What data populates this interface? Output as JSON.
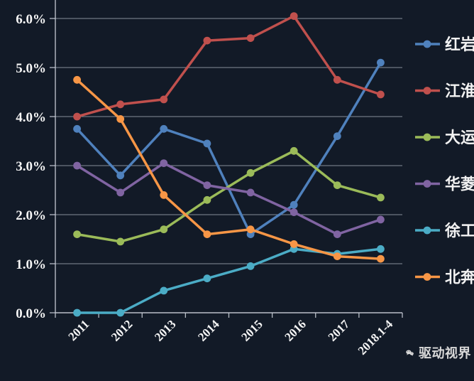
{
  "watermark": {
    "text": "驱动视界",
    "icon": "wechat-icon"
  },
  "colors": {
    "background": "#121a27",
    "grid": "#aeb4bf",
    "axis": "#c9ced7",
    "label": "#f5f5f5"
  },
  "chart_data": {
    "type": "line",
    "title": "",
    "xlabel": "",
    "ylabel": "",
    "categories": [
      "2011",
      "2012",
      "2013",
      "2014",
      "2015",
      "2016",
      "2017",
      "2018.1-4"
    ],
    "series": [
      {
        "name": "红岩",
        "color": "#4f81bd",
        "values": [
          3.75,
          2.8,
          3.75,
          3.45,
          1.6,
          2.2,
          3.6,
          5.1
        ]
      },
      {
        "name": "江淮",
        "color": "#c0504d",
        "values": [
          4.0,
          4.25,
          4.35,
          5.55,
          5.6,
          6.05,
          4.75,
          4.45
        ]
      },
      {
        "name": "大运",
        "color": "#9bbb59",
        "values": [
          1.6,
          1.45,
          1.7,
          2.3,
          2.85,
          3.3,
          2.6,
          2.35
        ]
      },
      {
        "name": "华菱",
        "color": "#8064a2",
        "values": [
          3.0,
          2.45,
          3.05,
          2.6,
          2.45,
          2.05,
          1.6,
          1.9
        ]
      },
      {
        "name": "徐工",
        "color": "#4bacc6",
        "values": [
          0.0,
          0.0,
          0.45,
          0.7,
          0.95,
          1.3,
          1.2,
          1.3
        ]
      },
      {
        "name": "北奔",
        "color": "#f79646",
        "values": [
          4.75,
          3.95,
          2.4,
          1.6,
          1.7,
          1.4,
          1.15,
          1.1
        ]
      }
    ],
    "ylim": [
      0,
      6
    ],
    "y_tick_step": 1,
    "y_tick_labels": [
      "0.0%",
      "1.0%",
      "2.0%",
      "3.0%",
      "4.0%",
      "5.0%",
      "6.0%"
    ],
    "grid": true,
    "legend_position": "right"
  }
}
